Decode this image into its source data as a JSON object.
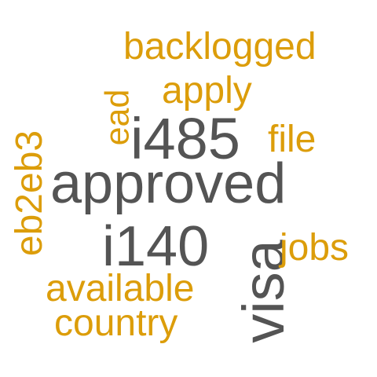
{
  "words": {
    "approved": "approved",
    "i485": "i485",
    "i140": "i140",
    "visa": "visa",
    "backlogged": "backlogged",
    "apply": "apply",
    "ead": "ead",
    "file": "file",
    "eb2eb3": "eb2eb3",
    "jobs": "jobs",
    "available": "available",
    "country": "country"
  },
  "colors": {
    "primary_gray": "#545454",
    "accent_gold": "#dc9d0a",
    "background": "#ffffff"
  }
}
